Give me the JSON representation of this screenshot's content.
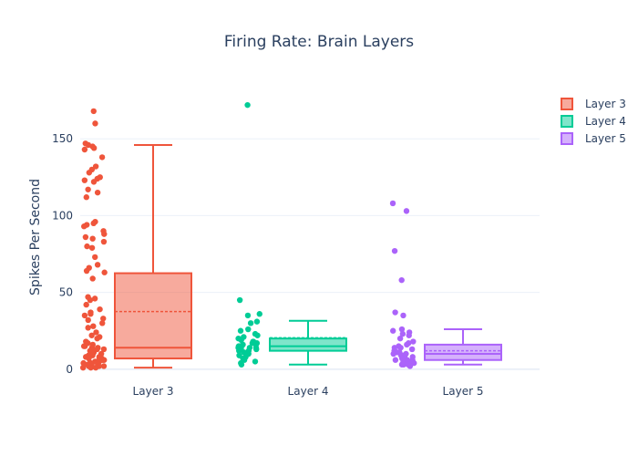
{
  "chart_data": {
    "type": "box",
    "title": "Firing Rate: Brain Layers",
    "xlabel": "",
    "ylabel": "Spikes Per Second",
    "ylim": [
      -9,
      181
    ],
    "yticks": [
      0,
      50,
      100,
      150
    ],
    "grid": true,
    "legend_position": "top-right",
    "categories": [
      "Layer 3",
      "Layer 4",
      "Layer 5"
    ],
    "series": [
      {
        "name": "Layer 3",
        "color": "#ef553b",
        "fill": "rgba(239,85,59,0.5)",
        "min": 1,
        "q1": 7,
        "median": 14,
        "q3": 62.5,
        "max": 146,
        "mean": 37.5,
        "points": [
          168,
          160,
          147,
          146,
          145,
          144,
          143,
          138,
          132,
          130,
          128,
          125,
          124,
          123,
          122,
          117,
          115,
          112,
          96,
          95,
          94,
          93,
          90,
          88,
          86,
          85,
          83,
          80,
          79,
          73,
          68,
          66,
          64,
          63,
          59,
          47,
          46,
          45,
          42,
          39,
          37,
          36,
          35,
          33,
          32,
          30,
          28,
          27,
          24,
          22,
          21,
          20,
          18,
          17,
          16,
          15,
          15,
          14,
          14,
          13,
          13,
          12,
          12,
          11,
          11,
          10,
          10,
          9,
          9,
          8,
          8,
          8,
          7,
          7,
          7,
          6,
          6,
          6,
          5,
          5,
          5,
          4,
          4,
          4,
          3,
          3,
          3,
          2,
          2,
          2,
          1,
          1,
          1
        ]
      },
      {
        "name": "Layer 4",
        "color": "#00cc96",
        "fill": "rgba(0,204,150,0.5)",
        "min": 3,
        "q1": 12,
        "median": 15,
        "q3": 20,
        "max": 31.5,
        "mean": 20.5,
        "points": [
          172,
          45,
          36,
          35,
          31,
          30,
          26,
          25,
          23,
          22,
          21,
          20,
          19,
          18,
          18,
          17,
          17,
          16,
          16,
          15,
          15,
          15,
          14,
          14,
          14,
          13,
          13,
          12,
          12,
          11,
          10,
          9,
          8,
          7,
          6,
          5,
          4,
          3
        ]
      },
      {
        "name": "Layer 5",
        "color": "#ab63fa",
        "fill": "rgba(171,99,250,0.5)",
        "min": 3,
        "q1": 6,
        "median": 10,
        "q3": 16,
        "max": 26,
        "mean": 12,
        "points": [
          108,
          103,
          77,
          58,
          37,
          35,
          26,
          25,
          24,
          23,
          22,
          20,
          18,
          17,
          16,
          15,
          14,
          14,
          13,
          12,
          12,
          11,
          11,
          10,
          10,
          9,
          9,
          8,
          8,
          7,
          7,
          6,
          6,
          6,
          5,
          5,
          5,
          4,
          4,
          4,
          3,
          3,
          3,
          2
        ]
      }
    ]
  }
}
